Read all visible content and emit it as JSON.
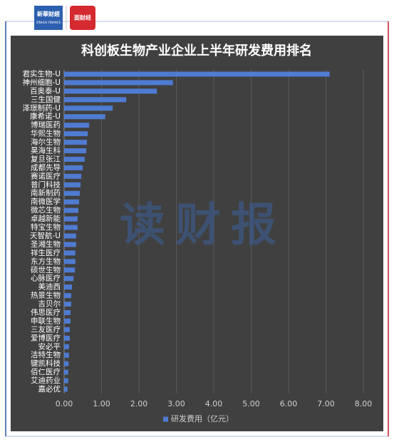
{
  "header": {
    "logo_left": "新華財經",
    "logo_left_sub": "XINHUA FINANCE",
    "logo_right": "面财经"
  },
  "watermark": "读财报",
  "chart_data": {
    "type": "hbar",
    "title": "科创板生物产业企业上半年研发费用排名",
    "categories": [
      "君实生物-U",
      "神州细胞-U",
      "百奥泰-U",
      "三生国健",
      "泽璟制药-U",
      "康希诺-U",
      "博瑞医药",
      "华熙生物",
      "海尔生物",
      "昊海生科",
      "复旦张江",
      "成都先导",
      "赛诺医疗",
      "普门科技",
      "南新制药",
      "南微医学",
      "微芯生物",
      "卓越新能",
      "特宝生物",
      "天智航-U",
      "圣湘生物",
      "祥生医疗",
      "东方生物",
      "硕世生物",
      "心脉医疗",
      "美迪西",
      "热景生物",
      "吉贝尔",
      "伟思医疗",
      "申联生物",
      "三友医疗",
      "爱博医疗",
      "安必平",
      "洁特生物",
      "键凯科技",
      "佰仁医疗",
      "艾迪药业",
      "嘉必优"
    ],
    "series": [
      {
        "name": "研发费用（亿元）",
        "color": "#4f7bd1",
        "values": [
          7.1,
          2.91,
          2.48,
          1.66,
          1.3,
          1.1,
          0.67,
          0.63,
          0.61,
          0.59,
          0.55,
          0.5,
          0.46,
          0.44,
          0.42,
          0.4,
          0.38,
          0.36,
          0.36,
          0.32,
          0.32,
          0.3,
          0.3,
          0.29,
          0.25,
          0.21,
          0.19,
          0.19,
          0.17,
          0.17,
          0.15,
          0.15,
          0.13,
          0.13,
          0.12,
          0.11,
          0.11,
          0.09
        ]
      }
    ],
    "xlim": [
      0,
      8
    ],
    "xticks": [
      {
        "value": 0,
        "label": "0.00"
      },
      {
        "value": 1,
        "label": "1.00"
      },
      {
        "value": 2,
        "label": "2.00"
      },
      {
        "value": 3,
        "label": "3.00"
      },
      {
        "value": 4,
        "label": "4.00"
      },
      {
        "value": 5,
        "label": "5.00"
      },
      {
        "value": 6,
        "label": "6.00"
      },
      {
        "value": 7,
        "label": "7.00"
      },
      {
        "value": 8,
        "label": "8.00"
      }
    ],
    "grid": true,
    "legend": "bottom"
  }
}
